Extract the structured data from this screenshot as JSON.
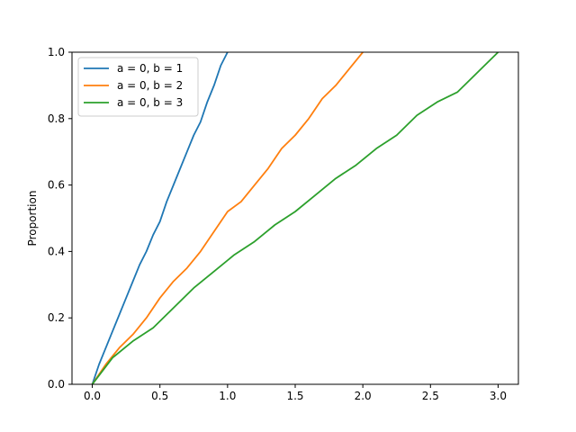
{
  "chart_data": {
    "type": "line",
    "title": "",
    "xlabel": "",
    "ylabel": "Proportion",
    "xlim": [
      -0.15,
      3.15
    ],
    "ylim": [
      0.0,
      1.0
    ],
    "xticks": [
      0.0,
      0.5,
      1.0,
      1.5,
      2.0,
      2.5,
      3.0
    ],
    "xtick_labels": [
      "0.0",
      "0.5",
      "1.0",
      "1.5",
      "2.0",
      "2.5",
      "3.0"
    ],
    "yticks": [
      0.0,
      0.2,
      0.4,
      0.6,
      0.8,
      1.0
    ],
    "ytick_labels": [
      "0.0",
      "0.2",
      "0.4",
      "0.6",
      "0.8",
      "1.0"
    ],
    "grid": false,
    "legend_position": "top-left",
    "series": [
      {
        "name": "a = 0, b = 1",
        "color": "#1f77b4",
        "x": [
          0.0,
          0.05,
          0.1,
          0.15,
          0.2,
          0.25,
          0.3,
          0.35,
          0.4,
          0.45,
          0.5,
          0.55,
          0.6,
          0.65,
          0.7,
          0.75,
          0.8,
          0.85,
          0.9,
          0.95,
          1.0
        ],
        "y": [
          0.0,
          0.06,
          0.11,
          0.16,
          0.21,
          0.26,
          0.31,
          0.36,
          0.4,
          0.45,
          0.49,
          0.55,
          0.6,
          0.65,
          0.7,
          0.75,
          0.79,
          0.85,
          0.9,
          0.96,
          1.0
        ]
      },
      {
        "name": "a = 0, b = 2",
        "color": "#ff7f0e",
        "x": [
          0.0,
          0.1,
          0.2,
          0.3,
          0.4,
          0.5,
          0.6,
          0.7,
          0.8,
          0.9,
          1.0,
          1.1,
          1.2,
          1.3,
          1.4,
          1.5,
          1.6,
          1.7,
          1.8,
          1.9,
          2.0
        ],
        "y": [
          0.0,
          0.06,
          0.11,
          0.15,
          0.2,
          0.26,
          0.31,
          0.35,
          0.4,
          0.46,
          0.52,
          0.55,
          0.6,
          0.65,
          0.71,
          0.75,
          0.8,
          0.86,
          0.9,
          0.95,
          1.0
        ]
      },
      {
        "name": "a = 0, b = 3",
        "color": "#2ca02c",
        "x": [
          0.0,
          0.15,
          0.3,
          0.45,
          0.6,
          0.75,
          0.9,
          1.05,
          1.2,
          1.35,
          1.5,
          1.65,
          1.8,
          1.95,
          2.1,
          2.25,
          2.4,
          2.55,
          2.7,
          2.85,
          3.0
        ],
        "y": [
          0.0,
          0.08,
          0.13,
          0.17,
          0.23,
          0.29,
          0.34,
          0.39,
          0.43,
          0.48,
          0.52,
          0.57,
          0.62,
          0.66,
          0.71,
          0.75,
          0.81,
          0.85,
          0.88,
          0.94,
          1.0
        ]
      }
    ]
  }
}
